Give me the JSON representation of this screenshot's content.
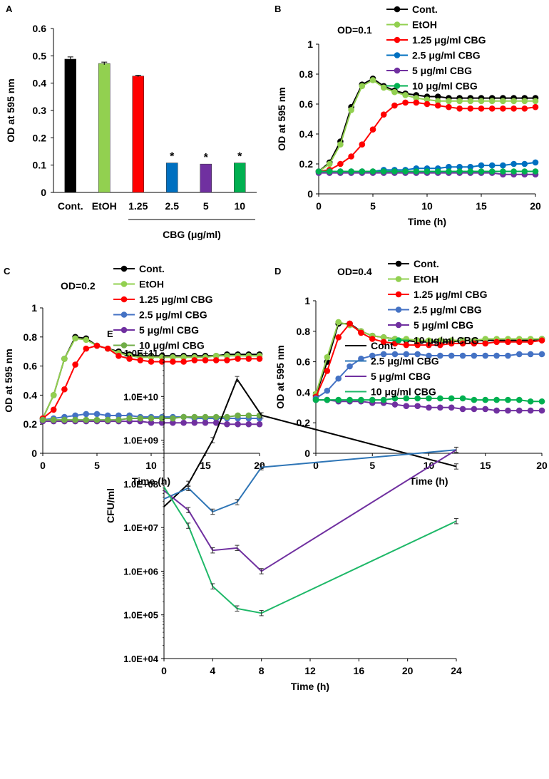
{
  "colors": {
    "black": "#000000",
    "light_green": "#92D050",
    "red": "#FF0000",
    "blue": "#0070C0",
    "purple": "#7030A0",
    "green": "#00B050",
    "c_blue": "#4472C4",
    "c_green": "#70AD47",
    "e_blue": "#2E75B6",
    "e_green": "#1EB868"
  },
  "chart_data": [
    {
      "id": "A",
      "panel_label": "A",
      "type": "bar",
      "ylabel": "OD at 595 nm",
      "ylim": [
        0,
        0.6
      ],
      "yticks": [
        "0",
        "0.1",
        "0.2",
        "0.3",
        "0.4",
        "0.5",
        "0.6"
      ],
      "categories": [
        "Cont.",
        "EtOH",
        "1.25",
        "2.5",
        "5",
        "10"
      ],
      "values": [
        0.488,
        0.472,
        0.426,
        0.108,
        0.104,
        0.108
      ],
      "errors": [
        0.008,
        0.005,
        0.003,
        0.0,
        0.0,
        0.0
      ],
      "significant": [
        "",
        "",
        "",
        "*",
        "*",
        "*"
      ],
      "bar_colors": [
        "black",
        "light_green",
        "red",
        "blue",
        "purple",
        "green"
      ],
      "group_label": "CBG (μg/ml)"
    },
    {
      "id": "B",
      "panel_label": "B",
      "type": "line",
      "title": "OD=0.1",
      "xlabel": "Time (h)",
      "ylabel": "OD at 595 nm",
      "xlim": [
        0,
        20
      ],
      "ylim": [
        0,
        1
      ],
      "xticks": [
        "0",
        "5",
        "10",
        "15",
        "20"
      ],
      "yticks": [
        "0",
        "0.2",
        "0.4",
        "0.6",
        "0.8",
        "1"
      ],
      "legend": [
        "Cont.",
        "EtOH",
        "1.25 μg/ml CBG",
        "2.5 μg/ml CBG",
        "5 μg/ml CBG",
        "10 μg/ml CBG"
      ],
      "series_colors": [
        "black",
        "light_green",
        "red",
        "blue",
        "purple",
        "green"
      ],
      "x": [
        0,
        1,
        2,
        3,
        4,
        5,
        6,
        7,
        8,
        9,
        10,
        11,
        12,
        13,
        14,
        15,
        16,
        17,
        18,
        19,
        20
      ],
      "series": [
        {
          "name": "Cont.",
          "values": [
            0.15,
            0.21,
            0.35,
            0.58,
            0.73,
            0.77,
            0.72,
            0.69,
            0.67,
            0.66,
            0.65,
            0.65,
            0.64,
            0.64,
            0.64,
            0.64,
            0.64,
            0.64,
            0.64,
            0.64,
            0.64
          ]
        },
        {
          "name": "EtOH",
          "values": [
            0.15,
            0.2,
            0.33,
            0.56,
            0.72,
            0.76,
            0.71,
            0.68,
            0.66,
            0.64,
            0.63,
            0.62,
            0.62,
            0.62,
            0.62,
            0.62,
            0.62,
            0.62,
            0.62,
            0.62,
            0.62
          ]
        },
        {
          "name": "1.25 μg/ml CBG",
          "values": [
            0.15,
            0.16,
            0.2,
            0.25,
            0.33,
            0.43,
            0.53,
            0.59,
            0.61,
            0.61,
            0.6,
            0.59,
            0.58,
            0.57,
            0.57,
            0.57,
            0.57,
            0.57,
            0.57,
            0.57,
            0.58
          ]
        },
        {
          "name": "2.5 μg/ml CBG",
          "values": [
            0.15,
            0.15,
            0.15,
            0.15,
            0.15,
            0.15,
            0.16,
            0.16,
            0.16,
            0.17,
            0.17,
            0.17,
            0.18,
            0.18,
            0.18,
            0.19,
            0.19,
            0.19,
            0.2,
            0.2,
            0.21
          ]
        },
        {
          "name": "5 μg/ml CBG",
          "values": [
            0.14,
            0.14,
            0.14,
            0.14,
            0.14,
            0.14,
            0.14,
            0.14,
            0.14,
            0.14,
            0.14,
            0.14,
            0.14,
            0.14,
            0.14,
            0.14,
            0.14,
            0.13,
            0.13,
            0.13,
            0.13
          ]
        },
        {
          "name": "10 μg/ml CBG",
          "values": [
            0.15,
            0.15,
            0.15,
            0.15,
            0.15,
            0.15,
            0.15,
            0.15,
            0.15,
            0.15,
            0.15,
            0.15,
            0.15,
            0.15,
            0.15,
            0.15,
            0.15,
            0.15,
            0.15,
            0.15,
            0.15
          ]
        }
      ]
    },
    {
      "id": "C",
      "panel_label": "C",
      "type": "line",
      "title": "OD=0.2",
      "xlabel": "Time (h)",
      "ylabel": "OD at 595 nm",
      "xlim": [
        0,
        20
      ],
      "ylim": [
        0,
        1
      ],
      "xticks": [
        "0",
        "5",
        "10",
        "15",
        "20"
      ],
      "yticks": [
        "0",
        "0.2",
        "0.4",
        "0.6",
        "0.8",
        "1"
      ],
      "legend": [
        "Cont.",
        "EtOH",
        "1.25 μg/ml CBG",
        "2.5 μg/ml CBG",
        "5 μg/ml CBG",
        "10 μg/ml CBG"
      ],
      "series_colors": [
        "black",
        "light_green",
        "red",
        "c_blue",
        "purple",
        "c_green"
      ],
      "x": [
        0,
        1,
        2,
        3,
        4,
        5,
        6,
        7,
        8,
        9,
        10,
        11,
        12,
        13,
        14,
        15,
        16,
        17,
        18,
        19,
        20
      ],
      "series": [
        {
          "name": "Cont.",
          "values": [
            0.24,
            0.4,
            0.65,
            0.8,
            0.79,
            0.74,
            0.72,
            0.7,
            0.68,
            0.67,
            0.67,
            0.67,
            0.67,
            0.67,
            0.67,
            0.67,
            0.67,
            0.68,
            0.68,
            0.68,
            0.68
          ]
        },
        {
          "name": "EtOH",
          "values": [
            0.24,
            0.4,
            0.65,
            0.79,
            0.78,
            0.74,
            0.72,
            0.69,
            0.67,
            0.66,
            0.66,
            0.66,
            0.66,
            0.66,
            0.66,
            0.66,
            0.67,
            0.67,
            0.67,
            0.67,
            0.67
          ]
        },
        {
          "name": "1.25 μg/ml CBG",
          "values": [
            0.24,
            0.3,
            0.44,
            0.61,
            0.72,
            0.74,
            0.72,
            0.67,
            0.65,
            0.64,
            0.63,
            0.63,
            0.63,
            0.63,
            0.64,
            0.64,
            0.64,
            0.64,
            0.65,
            0.65,
            0.65
          ]
        },
        {
          "name": "2.5 μg/ml CBG",
          "values": [
            0.23,
            0.24,
            0.25,
            0.26,
            0.27,
            0.27,
            0.26,
            0.26,
            0.26,
            0.25,
            0.25,
            0.25,
            0.25,
            0.25,
            0.24,
            0.24,
            0.24,
            0.24,
            0.24,
            0.24,
            0.24
          ]
        },
        {
          "name": "5 μg/ml CBG",
          "values": [
            0.22,
            0.22,
            0.22,
            0.22,
            0.22,
            0.22,
            0.22,
            0.22,
            0.22,
            0.22,
            0.21,
            0.21,
            0.21,
            0.21,
            0.21,
            0.21,
            0.21,
            0.2,
            0.2,
            0.2,
            0.2
          ]
        },
        {
          "name": "10 μg/ml CBG",
          "values": [
            0.23,
            0.23,
            0.23,
            0.23,
            0.23,
            0.23,
            0.23,
            0.23,
            0.24,
            0.24,
            0.24,
            0.24,
            0.24,
            0.25,
            0.25,
            0.25,
            0.25,
            0.25,
            0.26,
            0.26,
            0.26
          ]
        }
      ]
    },
    {
      "id": "D",
      "panel_label": "D",
      "type": "line",
      "title": "OD=0.4",
      "xlabel": "Time (h)",
      "ylabel": "OD at 595 nm",
      "xlim": [
        0,
        20
      ],
      "ylim": [
        0,
        1
      ],
      "xticks": [
        "0",
        "5",
        "10",
        "15",
        "20"
      ],
      "yticks": [
        "0",
        "0.2",
        "0.4",
        "0.6",
        "0.8",
        "1"
      ],
      "legend": [
        "Cont.",
        "EtOH",
        "1.25 μg/ml CBG",
        "2.5 μg/ml CBG",
        "5 μg/ml CBG",
        "10 μg/ml CBG"
      ],
      "series_colors": [
        "black",
        "light_green",
        "red",
        "c_blue",
        "purple",
        "green"
      ],
      "x": [
        0,
        1,
        2,
        3,
        4,
        5,
        6,
        7,
        8,
        9,
        10,
        11,
        12,
        13,
        14,
        15,
        16,
        17,
        18,
        19,
        20
      ],
      "series": [
        {
          "name": "Cont.",
          "values": [
            0.38,
            0.6,
            0.85,
            0.85,
            0.8,
            0.77,
            0.76,
            0.75,
            0.74,
            0.73,
            0.73,
            0.73,
            0.73,
            0.74,
            0.74,
            0.74,
            0.74,
            0.74,
            0.74,
            0.74,
            0.75
          ]
        },
        {
          "name": "EtOH",
          "values": [
            0.39,
            0.63,
            0.86,
            0.84,
            0.8,
            0.77,
            0.76,
            0.75,
            0.75,
            0.74,
            0.74,
            0.74,
            0.74,
            0.74,
            0.74,
            0.75,
            0.75,
            0.75,
            0.75,
            0.75,
            0.75
          ]
        },
        {
          "name": "1.25 μg/ml CBG",
          "values": [
            0.37,
            0.54,
            0.76,
            0.85,
            0.79,
            0.75,
            0.73,
            0.72,
            0.71,
            0.71,
            0.71,
            0.71,
            0.72,
            0.72,
            0.72,
            0.72,
            0.73,
            0.73,
            0.73,
            0.73,
            0.74
          ]
        },
        {
          "name": "2.5 μg/ml CBG",
          "values": [
            0.36,
            0.41,
            0.49,
            0.57,
            0.62,
            0.64,
            0.65,
            0.65,
            0.65,
            0.65,
            0.64,
            0.64,
            0.64,
            0.64,
            0.64,
            0.64,
            0.64,
            0.64,
            0.65,
            0.65,
            0.65
          ]
        },
        {
          "name": "5 μg/ml CBG",
          "values": [
            0.35,
            0.35,
            0.34,
            0.34,
            0.34,
            0.33,
            0.33,
            0.32,
            0.31,
            0.31,
            0.3,
            0.3,
            0.3,
            0.29,
            0.29,
            0.29,
            0.28,
            0.28,
            0.28,
            0.28,
            0.28
          ]
        },
        {
          "name": "10 μg/ml CBG",
          "values": [
            0.35,
            0.35,
            0.35,
            0.35,
            0.35,
            0.35,
            0.35,
            0.36,
            0.36,
            0.36,
            0.36,
            0.36,
            0.36,
            0.36,
            0.35,
            0.35,
            0.35,
            0.35,
            0.35,
            0.34,
            0.34
          ]
        }
      ]
    },
    {
      "id": "E",
      "panel_label": "E",
      "type": "line",
      "scale": "log",
      "xlabel": "Time (h)",
      "ylabel": "CFU/ml",
      "xlim": [
        0,
        24
      ],
      "ylim_log10": [
        4,
        11
      ],
      "xticks": [
        "0",
        "4",
        "8",
        "12",
        "16",
        "20",
        "24"
      ],
      "yticks": [
        "1.0E+04",
        "1.0E+05",
        "1.0E+06",
        "1.0E+07",
        "1.0E+08",
        "1.0E+09",
        "1.0E+10",
        "1.0E+11"
      ],
      "legend": [
        "Cont.",
        "2.5 μg/ml CBG",
        "5 μg/ml CBG",
        "10 μg/ml CBG"
      ],
      "series_colors": [
        "black",
        "e_blue",
        "purple",
        "e_green"
      ],
      "x": [
        0,
        2,
        4,
        6,
        8,
        24
      ],
      "series": [
        {
          "name": "Cont.",
          "values": [
            30000000.0,
            100000000.0,
            1000000000.0,
            25000000000.0,
            3700000000.0,
            250000000.0
          ]
        },
        {
          "name": "2.5 μg/ml CBG",
          "values": [
            45000000.0,
            80000000.0,
            23000000.0,
            38000000.0,
            240000000.0,
            600000000.0
          ]
        },
        {
          "name": "5 μg/ml CBG",
          "values": [
            70000000.0,
            25000000.0,
            3000000.0,
            3400000.0,
            1000000.0,
            600000000.0
          ]
        },
        {
          "name": "10 μg/ml CBG",
          "values": [
            85000000.0,
            11000000.0,
            450000.0,
            140000.0,
            110000.0,
            14000000.0
          ]
        }
      ]
    }
  ]
}
